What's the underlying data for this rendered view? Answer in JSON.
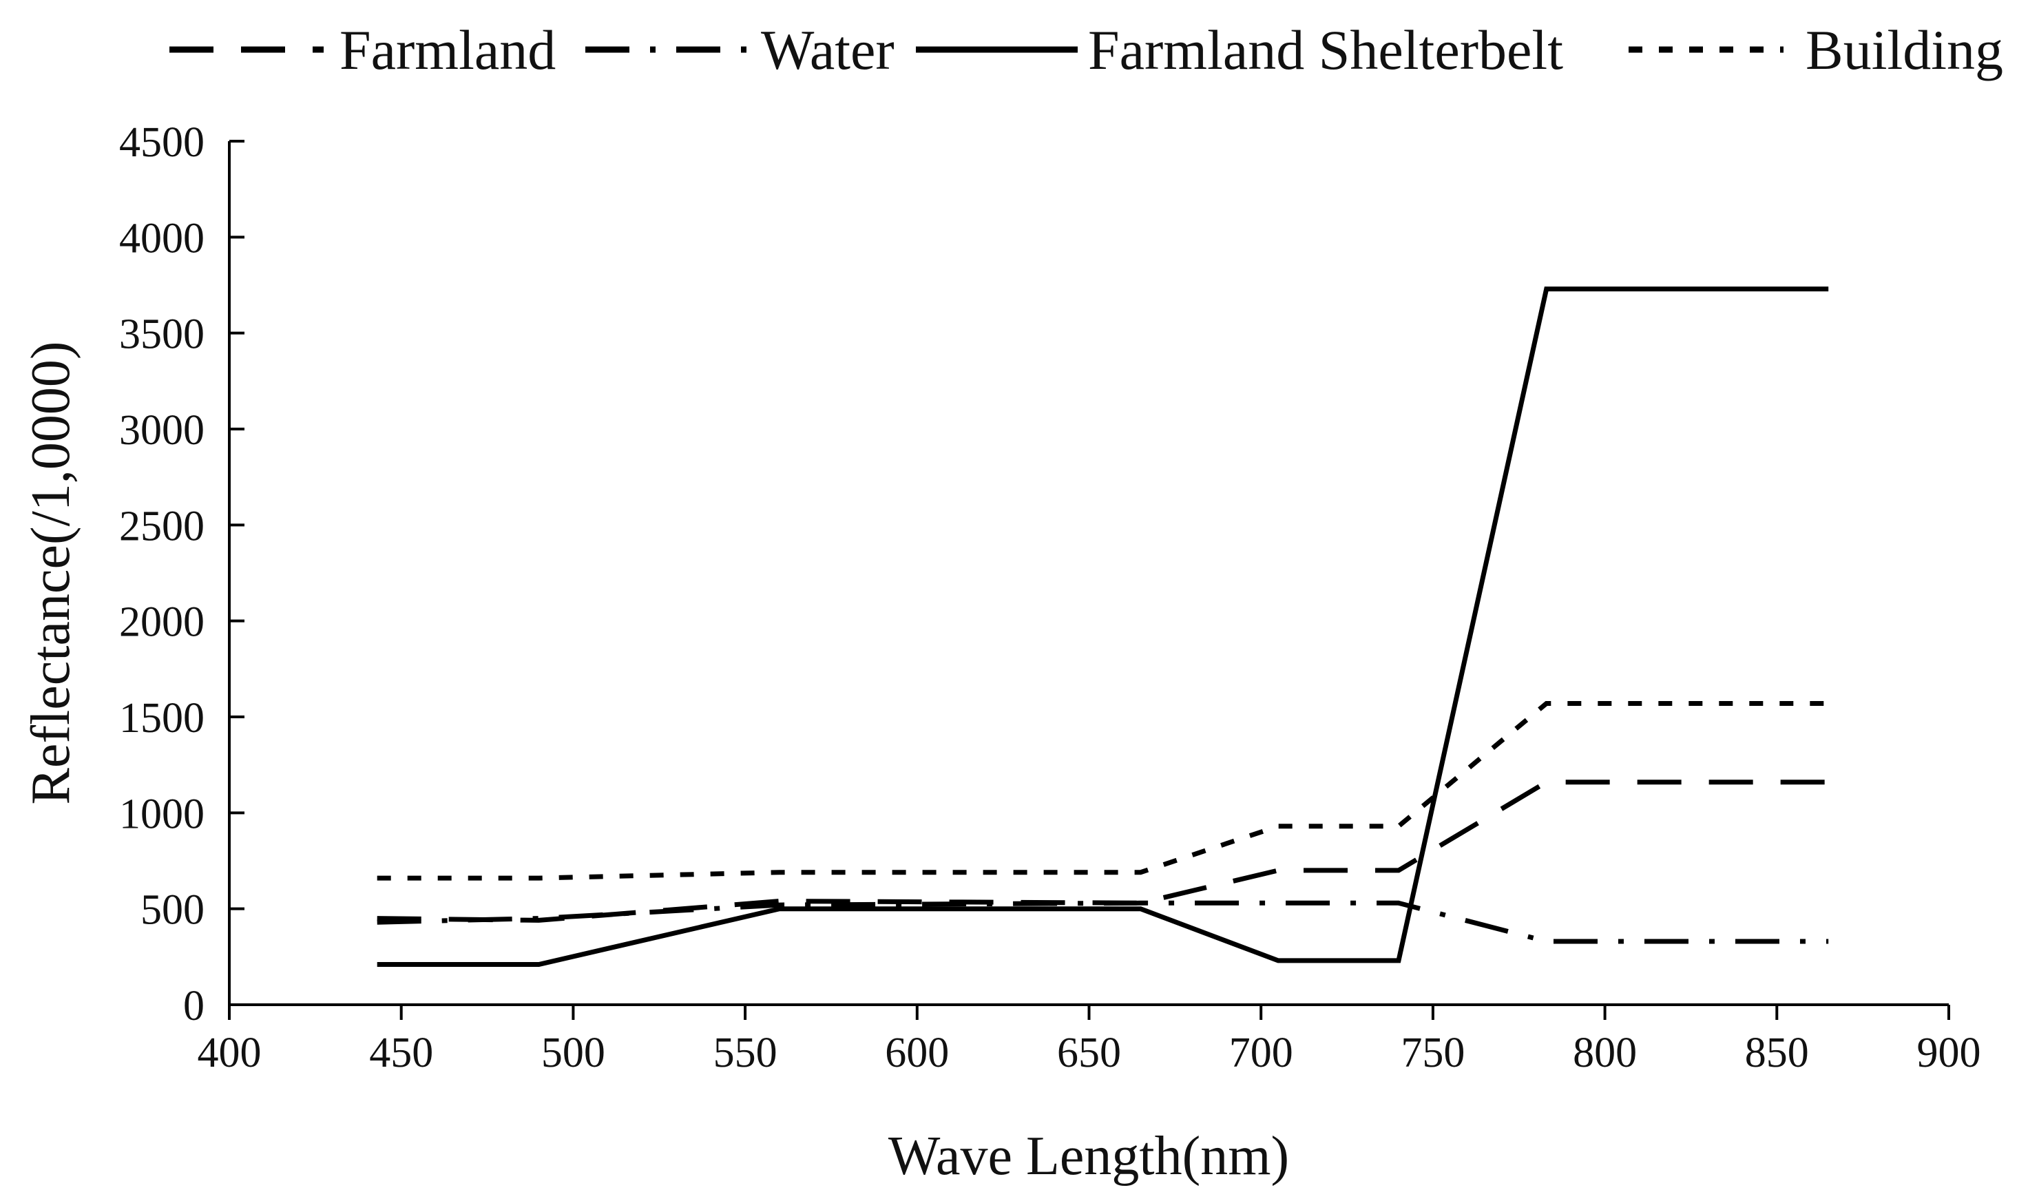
{
  "chart_data": {
    "type": "line",
    "title": "",
    "xlabel": "Wave Length(nm)",
    "ylabel": "Reflectance(/1,0000)",
    "xlim": [
      400,
      900
    ],
    "ylim": [
      0,
      4500
    ],
    "xticks": [
      400,
      450,
      500,
      550,
      600,
      650,
      700,
      750,
      800,
      850,
      900
    ],
    "yticks": [
      0,
      500,
      1000,
      1500,
      2000,
      2500,
      3000,
      3500,
      4000,
      4500
    ],
    "grid": false,
    "legend_position": "top",
    "series": [
      {
        "name": "Farmland",
        "style": "dashed",
        "color": "#000000",
        "x": [
          443,
          490,
          560,
          665,
          705,
          740,
          783,
          842,
          865
        ],
        "y": [
          450,
          440,
          540,
          530,
          700,
          700,
          1160,
          1160,
          1160
        ]
      },
      {
        "name": "Water",
        "style": "dashdot",
        "color": "#000000",
        "x": [
          443,
          490,
          560,
          665,
          705,
          740,
          783,
          842,
          865
        ],
        "y": [
          430,
          450,
          520,
          530,
          530,
          530,
          330,
          330,
          330
        ]
      },
      {
        "name": "Farmland Shelterbelt",
        "style": "solid",
        "color": "#000000",
        "x": [
          443,
          490,
          560,
          665,
          705,
          740,
          783,
          842,
          865
        ],
        "y": [
          210,
          210,
          500,
          500,
          230,
          230,
          3730,
          3730,
          3730
        ]
      },
      {
        "name": "Building",
        "style": "dotted",
        "color": "#000000",
        "x": [
          443,
          490,
          560,
          665,
          705,
          740,
          783,
          842,
          865
        ],
        "y": [
          660,
          660,
          690,
          690,
          930,
          930,
          1570,
          1570,
          1570
        ]
      }
    ]
  }
}
